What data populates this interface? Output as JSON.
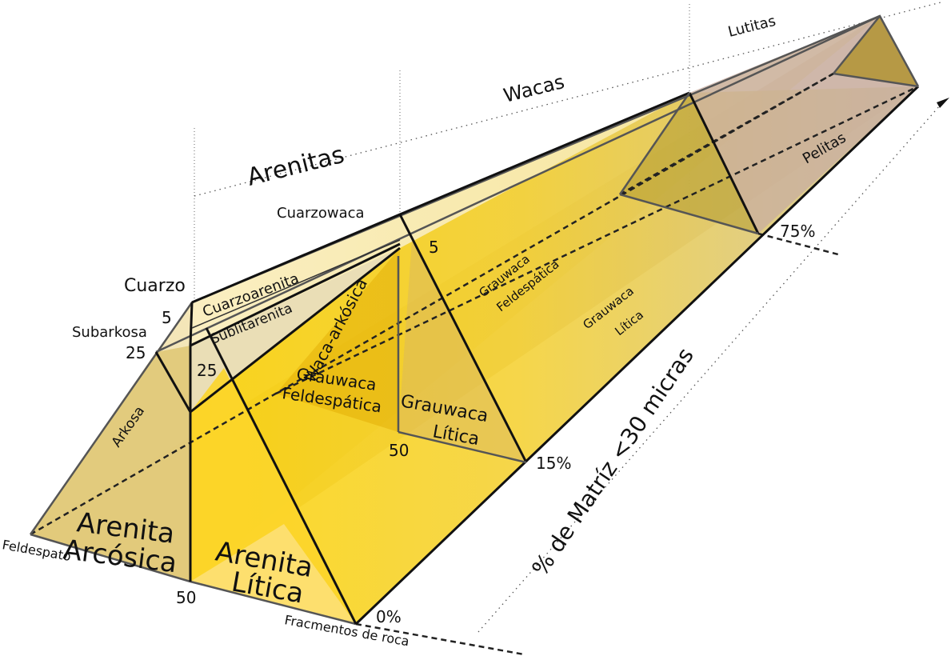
{
  "diagram": {
    "categories": {
      "arenitas": "Arenitas",
      "wacas": "Wacas",
      "lutitas": "Lutitas",
      "pelitas": "Pelitas"
    },
    "vertices": {
      "cuarzo": "Cuarzo",
      "feldespato": "Feldespato",
      "fragmentos": "Fracmentos de roca"
    },
    "fields": {
      "cuarzoarenita": "Cuarzoarenita",
      "sublitarenita": "Sublitarenita",
      "subarkosa": "Subarkosa",
      "arkosa": "Arkosa",
      "arenita_arcosica_1": "Arenita",
      "arenita_arcosica_2": "Arcósica",
      "arenita_litica_1": "Arenita",
      "arenita_litica_2": "Lítica",
      "cuarzowaca": "Cuarzowaca",
      "waca_arkosica": "Waca-arkósica",
      "grauwaca_feld_1": "Grauwaca",
      "grauwaca_feld_2": "Feldespática",
      "grauwaca_lit_1": "Grauwaca",
      "grauwaca_lit_2": "Lítica",
      "grauwaca_feld_far_1": "Grauwaca",
      "grauwaca_feld_far_2": "Feldespática",
      "grauwaca_lit_far_1": "Grauwaca",
      "grauwaca_lit_far_2": "Lítica"
    },
    "ticks": {
      "q5_front": "5",
      "q25_front": "25",
      "q25_inner": "25",
      "f50_front": "50",
      "q5_mid": "5",
      "f50_mid": "50",
      "m0": "0%",
      "m15": "15%",
      "m75": "75%"
    },
    "axis_label": "% de Matríz <30 micras",
    "colors": {
      "yellow_bright": "#fcd200",
      "yellow_light": "#fde68a",
      "pale": "#fbefc2",
      "tan": "#d9c37a",
      "mauve": "#c8aea0",
      "edge": "#111111"
    }
  }
}
